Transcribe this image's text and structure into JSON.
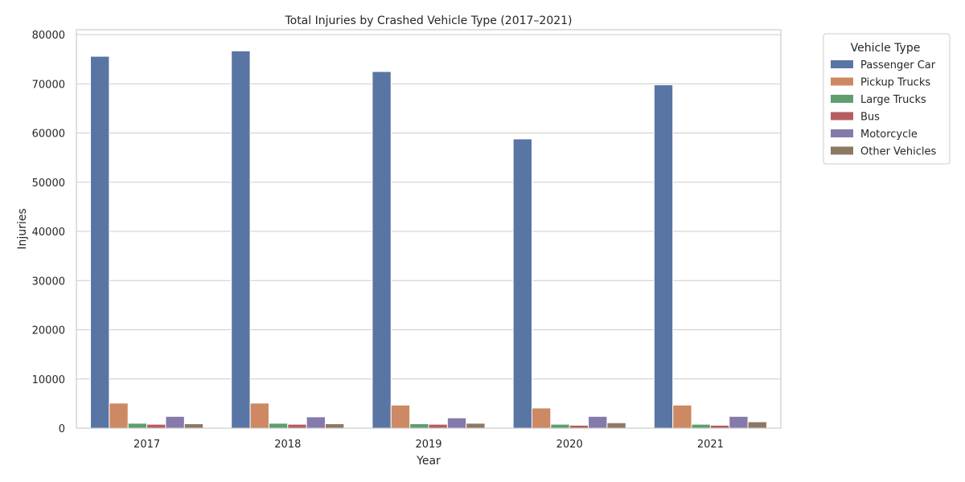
{
  "chart_data": {
    "type": "bar",
    "title": "Total Injuries by Crashed Vehicle Type (2017–2021)",
    "xlabel": "Year",
    "ylabel": "Injuries",
    "ylim": [
      0,
      81000
    ],
    "yticks": [
      0,
      10000,
      20000,
      30000,
      40000,
      50000,
      60000,
      70000,
      80000
    ],
    "grid": true,
    "legend_title": "Vehicle Type",
    "legend_position": "outside-top-right",
    "categories": [
      "2017",
      "2018",
      "2019",
      "2020",
      "2021"
    ],
    "series": [
      {
        "name": "Passenger Car",
        "color": "#5975a4",
        "values": [
          75600,
          76700,
          72500,
          58800,
          69800
        ]
      },
      {
        "name": "Pickup Trucks",
        "color": "#cc8963",
        "values": [
          5100,
          5100,
          4700,
          4100,
          4700
        ]
      },
      {
        "name": "Large Trucks",
        "color": "#5f9e6e",
        "values": [
          1000,
          1000,
          900,
          800,
          800
        ]
      },
      {
        "name": "Bus",
        "color": "#b55d60",
        "values": [
          800,
          800,
          800,
          600,
          600
        ]
      },
      {
        "name": "Motorcycle",
        "color": "#857aab",
        "values": [
          2400,
          2300,
          2100,
          2400,
          2400
        ]
      },
      {
        "name": "Other Vehicles",
        "color": "#8d7866",
        "values": [
          900,
          900,
          1000,
          1100,
          1300
        ]
      }
    ]
  }
}
